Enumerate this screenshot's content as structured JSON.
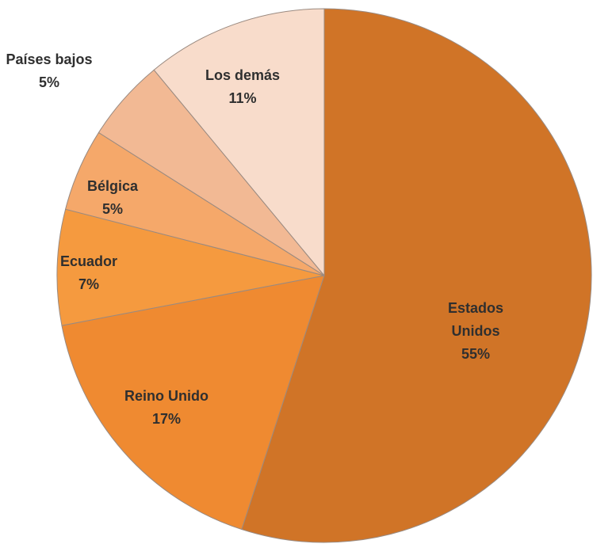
{
  "chart_data": {
    "type": "pie",
    "categories": [
      "Estados Unidos",
      "Reino Unido",
      "Ecuador",
      "Bélgica",
      "Países bajos",
      "Los demás"
    ],
    "values": [
      55,
      17,
      7,
      5,
      5,
      11
    ],
    "value_labels": [
      "55%",
      "17%",
      "7%",
      "5%",
      "5%",
      "11%"
    ],
    "colors": [
      "#d07427",
      "#ef8a31",
      "#f59a3f",
      "#f5a86a",
      "#f2b994",
      "#f8dccb"
    ]
  }
}
